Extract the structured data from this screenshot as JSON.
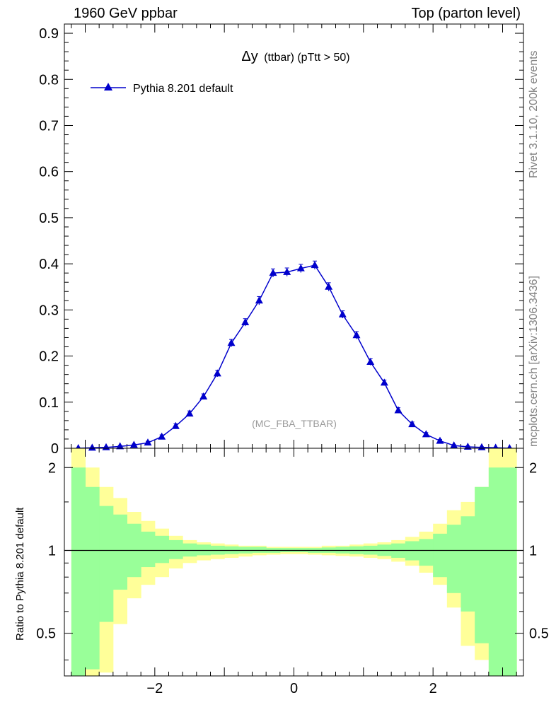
{
  "header": {
    "left": "1960 GeV ppbar",
    "right": "Top (parton level)"
  },
  "side_labels": {
    "rivet": "Rivet 3.1.10,  200k events",
    "mcplots": "mcplots.cern.ch [arXiv:1306.3436]"
  },
  "chart_data": [
    {
      "type": "line",
      "title_main": "Δy",
      "title_rest": "(ttbar) (pTtt > 50)",
      "watermark": "(MC_FBA_TTBAR)",
      "xlabel": "",
      "ylabel": "",
      "xlim": [
        -3.3,
        3.3
      ],
      "ylim": [
        0,
        0.92
      ],
      "yticks": [
        "0",
        "0.1",
        "0.2",
        "0.3",
        "0.4",
        "0.5",
        "0.6",
        "0.7",
        "0.8",
        "0.9"
      ],
      "legend_position": "top-left",
      "series": [
        {
          "name": "Pythia 8.201 default",
          "color": "#0000cc",
          "marker": "triangle",
          "x": [
            -3.1,
            -2.9,
            -2.7,
            -2.5,
            -2.3,
            -2.1,
            -1.9,
            -1.7,
            -1.5,
            -1.3,
            -1.1,
            -0.9,
            -0.7,
            -0.5,
            -0.3,
            -0.1,
            0.1,
            0.3,
            0.5,
            0.7,
            0.9,
            1.1,
            1.3,
            1.5,
            1.7,
            1.9,
            2.1,
            2.3,
            2.5,
            2.7,
            2.9,
            3.1
          ],
          "y": [
            0.0,
            0.001,
            0.002,
            0.004,
            0.007,
            0.012,
            0.025,
            0.048,
            0.075,
            0.112,
            0.162,
            0.228,
            0.273,
            0.32,
            0.38,
            0.382,
            0.39,
            0.397,
            0.35,
            0.29,
            0.245,
            0.187,
            0.142,
            0.082,
            0.052,
            0.03,
            0.016,
            0.006,
            0.003,
            0.002,
            0.001,
            0.0
          ],
          "yerr": [
            0.001,
            0.001,
            0.001,
            0.002,
            0.002,
            0.003,
            0.004,
            0.005,
            0.006,
            0.006,
            0.007,
            0.008,
            0.008,
            0.009,
            0.009,
            0.009,
            0.009,
            0.009,
            0.009,
            0.008,
            0.008,
            0.007,
            0.006,
            0.006,
            0.005,
            0.004,
            0.003,
            0.002,
            0.002,
            0.001,
            0.001,
            0.001
          ]
        }
      ]
    },
    {
      "type": "area",
      "ylabel": "Ratio to Pythia 8.201 default",
      "xlim": [
        -3.3,
        3.3
      ],
      "ylim": [
        0.35,
        2.35
      ],
      "log_y": true,
      "yticks": [
        "0.5",
        "1",
        "2"
      ],
      "xticks": [
        "−2",
        "0",
        "2"
      ],
      "reference_line": 1,
      "bin_edges": [
        -3.2,
        -3.0,
        -2.8,
        -2.6,
        -2.4,
        -2.2,
        -2.0,
        -1.8,
        -1.6,
        -1.4,
        -1.2,
        -1.0,
        -0.8,
        -0.6,
        -0.4,
        -0.2,
        0.0,
        0.2,
        0.4,
        0.6,
        0.8,
        1.0,
        1.2,
        1.4,
        1.6,
        1.8,
        2.0,
        2.2,
        2.4,
        2.6,
        2.8,
        3.0,
        3.2
      ],
      "bands": [
        {
          "name": "yellow band",
          "color": "#ffff99",
          "upper": [
            2.5,
            2.0,
            1.7,
            1.55,
            1.38,
            1.28,
            1.2,
            1.13,
            1.09,
            1.07,
            1.06,
            1.05,
            1.04,
            1.04,
            1.03,
            1.03,
            1.03,
            1.03,
            1.04,
            1.04,
            1.05,
            1.06,
            1.07,
            1.09,
            1.12,
            1.17,
            1.25,
            1.4,
            1.5,
            1.7,
            2.5,
            2.5
          ],
          "lower": [
            0.3,
            0.3,
            0.36,
            0.54,
            0.67,
            0.75,
            0.8,
            0.86,
            0.9,
            0.92,
            0.93,
            0.94,
            0.95,
            0.96,
            0.965,
            0.97,
            0.97,
            0.965,
            0.96,
            0.955,
            0.95,
            0.94,
            0.93,
            0.91,
            0.88,
            0.83,
            0.75,
            0.62,
            0.45,
            0.4,
            0.3,
            0.3
          ]
        },
        {
          "name": "green band",
          "color": "#99ff99",
          "upper": [
            2.0,
            1.7,
            1.45,
            1.35,
            1.25,
            1.17,
            1.13,
            1.09,
            1.06,
            1.05,
            1.04,
            1.035,
            1.03,
            1.03,
            1.02,
            1.02,
            1.02,
            1.02,
            1.025,
            1.03,
            1.035,
            1.04,
            1.05,
            1.06,
            1.08,
            1.1,
            1.15,
            1.24,
            1.33,
            1.7,
            2.0,
            2.0
          ],
          "lower": [
            0.35,
            0.37,
            0.55,
            0.72,
            0.8,
            0.87,
            0.9,
            0.93,
            0.95,
            0.96,
            0.965,
            0.97,
            0.975,
            0.98,
            0.98,
            0.985,
            0.985,
            0.98,
            0.98,
            0.975,
            0.97,
            0.965,
            0.955,
            0.94,
            0.92,
            0.88,
            0.8,
            0.7,
            0.6,
            0.46,
            0.35,
            0.35
          ]
        }
      ]
    }
  ]
}
